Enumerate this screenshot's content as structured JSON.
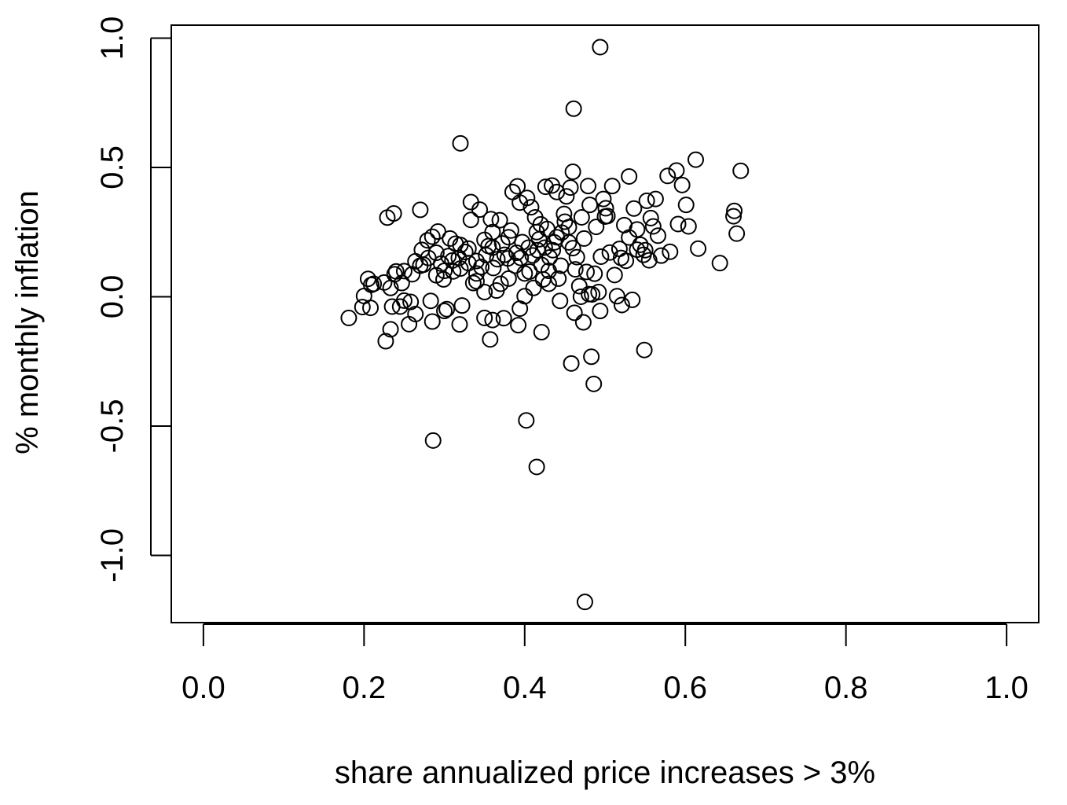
{
  "chart_data": {
    "type": "scatter",
    "x_label": "share annualized price increases > 3%",
    "y_label": "% monthly inflation",
    "xlim": [
      -0.04,
      1.04
    ],
    "ylim": [
      -1.26,
      1.05
    ],
    "xticks": [
      {
        "value": 0,
        "label": "0.0"
      },
      0.2,
      0.4,
      0.6,
      0.8,
      {
        "value": 1,
        "label": "1.0"
      }
    ],
    "yticks": [
      {
        "value": -1,
        "label": "-1.0"
      },
      -0.5,
      {
        "value": 0,
        "label": "0.0"
      },
      0.5,
      {
        "value": 1,
        "label": "1.0"
      }
    ],
    "color": "#000000",
    "x": [
      0.494,
      0.461,
      0.32,
      0.613,
      0.669,
      0.46,
      0.53,
      0.589,
      0.578,
      0.596,
      0.601,
      0.661,
      0.66,
      0.664,
      0.604,
      0.591,
      0.616,
      0.581,
      0.643,
      0.549,
      0.483,
      0.458,
      0.486,
      0.286,
      0.402,
      0.415,
      0.475,
      0.181,
      0.227,
      0.233,
      0.229,
      0.237,
      0.27,
      0.421,
      0.319,
      0.285,
      0.357,
      0.35,
      0.36,
      0.374,
      0.392,
      0.473,
      0.462,
      0.494,
      0.394,
      0.3,
      0.303,
      0.264,
      0.256,
      0.245,
      0.25,
      0.258,
      0.235,
      0.208,
      0.198,
      0.2,
      0.205,
      0.209,
      0.212,
      0.225,
      0.233,
      0.238,
      0.24,
      0.247,
      0.25,
      0.26,
      0.264,
      0.272,
      0.274,
      0.279,
      0.283,
      0.285,
      0.29,
      0.292,
      0.296,
      0.299,
      0.305,
      0.307,
      0.311,
      0.314,
      0.318,
      0.32,
      0.322,
      0.326,
      0.33,
      0.333,
      0.333,
      0.336,
      0.34,
      0.344,
      0.346,
      0.35,
      0.352,
      0.355,
      0.358,
      0.361,
      0.365,
      0.366,
      0.369,
      0.372,
      0.375,
      0.379,
      0.383,
      0.385,
      0.388,
      0.391,
      0.394,
      0.397,
      0.4,
      0.403,
      0.406,
      0.408,
      0.411,
      0.413,
      0.416,
      0.418,
      0.421,
      0.423,
      0.426,
      0.428,
      0.431,
      0.434,
      0.437,
      0.44,
      0.442,
      0.444,
      0.446,
      0.449,
      0.452,
      0.455,
      0.457,
      0.46,
      0.463,
      0.465,
      0.468,
      0.471,
      0.474,
      0.477,
      0.479,
      0.481,
      0.484,
      0.487,
      0.489,
      0.492,
      0.495,
      0.498,
      0.501,
      0.503,
      0.506,
      0.509,
      0.512,
      0.515,
      0.518,
      0.521,
      0.524,
      0.526,
      0.53,
      0.534,
      0.536,
      0.54,
      0.544,
      0.548,
      0.552,
      0.555,
      0.557,
      0.56,
      0.563,
      0.566,
      0.57,
      0.3,
      0.31,
      0.34,
      0.36,
      0.38,
      0.395,
      0.405,
      0.415,
      0.425,
      0.43,
      0.435,
      0.44,
      0.445,
      0.45,
      0.455,
      0.42,
      0.41,
      0.39,
      0.37,
      0.35,
      0.33,
      0.32,
      0.27,
      0.28,
      0.34,
      0.47,
      0.48,
      0.5,
      0.52,
      0.54,
      0.55,
      0.29,
      0.36,
      0.38,
      0.4,
      0.43
    ],
    "values": [
      0.965,
      0.727,
      0.593,
      0.53,
      0.487,
      0.483,
      0.465,
      0.488,
      0.467,
      0.432,
      0.355,
      0.332,
      0.311,
      0.244,
      0.272,
      0.281,
      0.186,
      0.174,
      0.13,
      -0.206,
      -0.232,
      -0.258,
      -0.337,
      -0.556,
      -0.478,
      -0.658,
      -1.18,
      -0.082,
      -0.172,
      -0.126,
      0.306,
      0.322,
      0.336,
      -0.137,
      -0.107,
      -0.096,
      -0.165,
      -0.082,
      -0.09,
      -0.083,
      -0.11,
      -0.099,
      -0.062,
      -0.055,
      -0.046,
      -0.055,
      -0.048,
      -0.067,
      -0.106,
      -0.038,
      -0.015,
      -0.02,
      -0.038,
      -0.043,
      -0.04,
      0.003,
      0.069,
      0.046,
      0.05,
      0.055,
      0.034,
      0.087,
      0.098,
      0.053,
      0.099,
      0.087,
      0.137,
      0.181,
      0.124,
      0.218,
      -0.016,
      0.232,
      0.083,
      0.252,
      0.128,
      0.067,
      0.157,
      0.225,
      0.098,
      0.205,
      0.15,
      0.109,
      -0.034,
      0.173,
      0.186,
      0.297,
      0.366,
      0.053,
      0.138,
      0.337,
      0.115,
      0.018,
      0.161,
      0.196,
      0.3,
      0.111,
      0.024,
      0.145,
      0.296,
      0.206,
      0.162,
      0.148,
      0.256,
      0.405,
      0.12,
      0.427,
      0.364,
      0.211,
      0.002,
      0.382,
      0.097,
      0.346,
      0.034,
      0.307,
      0.18,
      0.222,
      0.123,
      0.067,
      0.425,
      0.262,
      0.152,
      0.43,
      0.21,
      0.405,
      0.07,
      -0.016,
      0.248,
      0.32,
      0.388,
      0.269,
      0.422,
      0.188,
      0.106,
      0.153,
      0.041,
      0.307,
      0.225,
      0.096,
      0.428,
      0.355,
      0.009,
      0.089,
      0.27,
      0.018,
      0.155,
      0.378,
      0.342,
      0.312,
      0.171,
      0.428,
      0.084,
      0.002,
      0.185,
      -0.032,
      0.277,
      0.139,
      0.229,
      -0.012,
      0.341,
      0.182,
      0.201,
      0.162,
      0.371,
      0.141,
      0.304,
      0.272,
      0.378,
      0.236,
      0.159,
      0.1,
      0.14,
      0.09,
      0.19,
      0.07,
      0.15,
      0.19,
      0.25,
      0.19,
      0.1,
      0.18,
      0.23,
      0.12,
      0.29,
      0.21,
      0.28,
      0.16,
      0.17,
      0.05,
      0.22,
      0.13,
      0.2,
      0.12,
      0.15,
      0.06,
      0.0,
      0.01,
      0.31,
      0.15,
      0.26,
      0.18,
      0.17,
      0.25,
      0.23,
      0.09,
      0.05
    ]
  }
}
